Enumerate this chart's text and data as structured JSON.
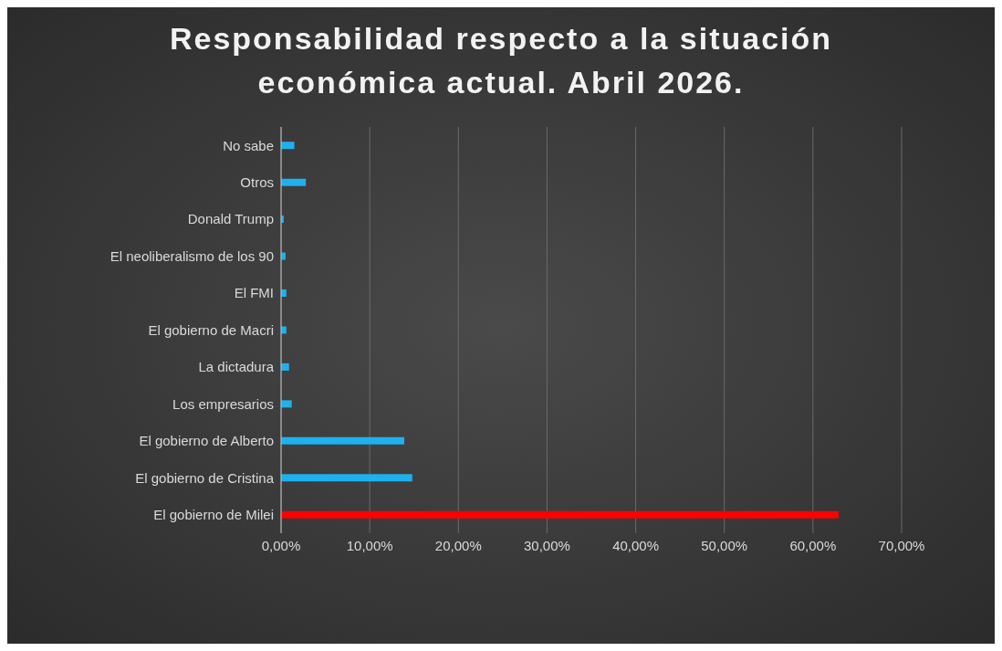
{
  "chart_data": {
    "type": "bar",
    "orientation": "horizontal",
    "title": "Responsabilidad respecto a la situación económica actual. Abril 2026.",
    "categories": [
      "No sabe",
      "Otros",
      "Donald Trump",
      "El neoliberalismo de los 90",
      "El FMI",
      "El gobierno de Macri",
      "La dictadura",
      "Los empresarios",
      "El gobierno de Alberto",
      "El gobierno de Cristina",
      "El gobierno de Milei"
    ],
    "values": [
      1.5,
      2.8,
      0.3,
      0.5,
      0.6,
      0.6,
      0.9,
      1.2,
      13.9,
      14.8,
      62.9
    ],
    "colors": [
      "#1eb1ed",
      "#1eb1ed",
      "#1eb1ed",
      "#1eb1ed",
      "#1eb1ed",
      "#1eb1ed",
      "#1eb1ed",
      "#1eb1ed",
      "#1eb1ed",
      "#1eb1ed",
      "#ff0000"
    ],
    "xlim": [
      0,
      70
    ],
    "xticks": [
      {
        "value": 0,
        "label": "0,00%"
      },
      {
        "value": 10,
        "label": "10,00%"
      },
      {
        "value": 20,
        "label": "20,00%"
      },
      {
        "value": 30,
        "label": "30,00%"
      },
      {
        "value": 40,
        "label": "40,00%"
      },
      {
        "value": 50,
        "label": "50,00%"
      },
      {
        "value": 60,
        "label": "60,00%"
      },
      {
        "value": 70,
        "label": "70,00%"
      }
    ],
    "grid": "x"
  }
}
